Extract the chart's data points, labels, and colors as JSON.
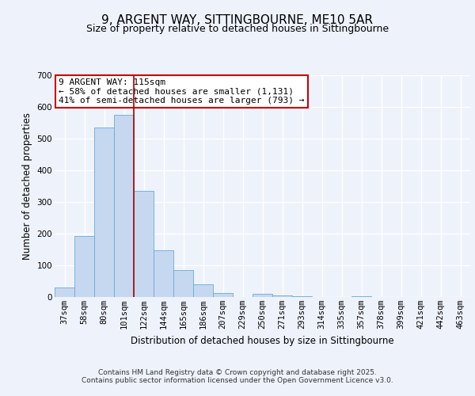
{
  "title": "9, ARGENT WAY, SITTINGBOURNE, ME10 5AR",
  "subtitle": "Size of property relative to detached houses in Sittingbourne",
  "xlabel": "Distribution of detached houses by size in Sittingbourne",
  "ylabel": "Number of detached properties",
  "categories": [
    "37sqm",
    "58sqm",
    "80sqm",
    "101sqm",
    "122sqm",
    "144sqm",
    "165sqm",
    "186sqm",
    "207sqm",
    "229sqm",
    "250sqm",
    "271sqm",
    "293sqm",
    "314sqm",
    "335sqm",
    "357sqm",
    "378sqm",
    "399sqm",
    "421sqm",
    "442sqm",
    "463sqm"
  ],
  "values": [
    30,
    192,
    535,
    575,
    335,
    148,
    85,
    40,
    12,
    0,
    10,
    5,
    3,
    0,
    0,
    3,
    0,
    0,
    0,
    0,
    0
  ],
  "bar_color": "#c5d8f0",
  "bar_edge_color": "#6aaad4",
  "reference_line_color": "#aa0000",
  "annotation_text": "9 ARGENT WAY: 115sqm\n← 58% of detached houses are smaller (1,131)\n41% of semi-detached houses are larger (793) →",
  "annotation_box_color": "#ffffff",
  "annotation_box_edge_color": "#cc0000",
  "ylim": [
    0,
    700
  ],
  "yticks": [
    0,
    100,
    200,
    300,
    400,
    500,
    600,
    700
  ],
  "bg_color": "#eef2fb",
  "plot_bg_color": "#eef2fb",
  "grid_color": "#ffffff",
  "footer_line1": "Contains HM Land Registry data © Crown copyright and database right 2025.",
  "footer_line2": "Contains public sector information licensed under the Open Government Licence v3.0.",
  "title_fontsize": 11,
  "subtitle_fontsize": 9,
  "axis_label_fontsize": 8.5,
  "tick_fontsize": 7.5,
  "annotation_fontsize": 8,
  "footer_fontsize": 6.5
}
